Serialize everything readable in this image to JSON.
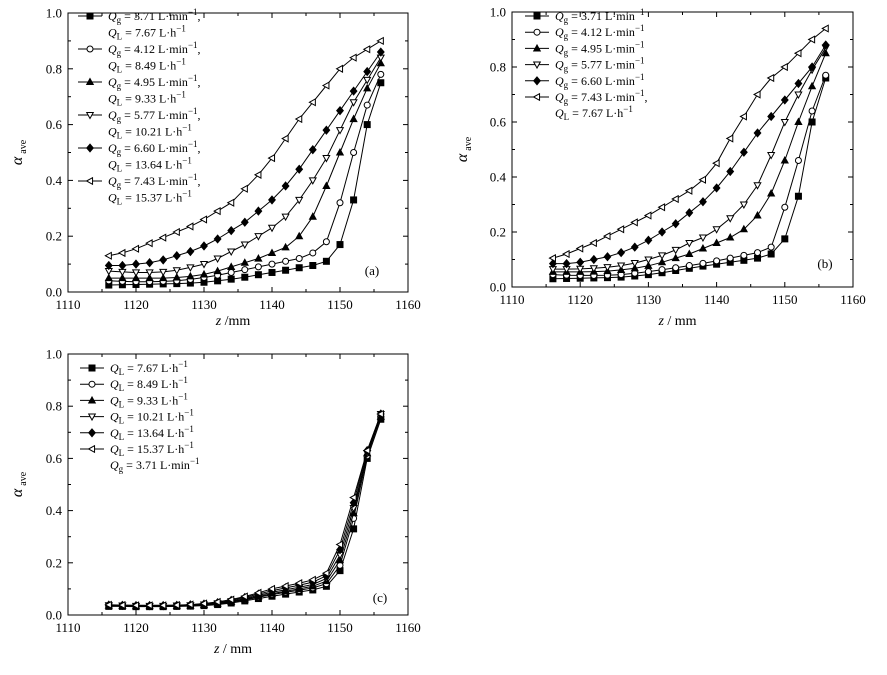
{
  "chart_data": [
    {
      "id": "a",
      "type": "line",
      "panel_label": "(a)",
      "xlabel_main": "z",
      "xlabel_unit": " /mm",
      "ylabel_main": "α",
      "ylabel_sub": "ave",
      "xlim": [
        1110,
        1160
      ],
      "ylim": [
        0,
        1.0
      ],
      "xticks": [
        "1110",
        "1120",
        "1130",
        "1140",
        "1150",
        "1160"
      ],
      "yticks": [
        "0.0",
        "0.2",
        "0.4",
        "0.6",
        "0.8",
        "1.0"
      ],
      "x": [
        1116,
        1118,
        1120,
        1122,
        1124,
        1126,
        1128,
        1130,
        1132,
        1134,
        1136,
        1138,
        1140,
        1142,
        1144,
        1146,
        1148,
        1150,
        1152,
        1154,
        1156
      ],
      "series": [
        {
          "name": "Qg = 3.71 L·min−1, QL = 7.67 L·h−1",
          "marker": "square",
          "legend": [
            [
              "Q",
              "g",
              " = 3.71 L·min",
              "−1",
              ", "
            ],
            [
              "Q",
              "L",
              " = 7.67 L·h",
              "−1",
              ""
            ]
          ],
          "values": [
            0.025,
            0.026,
            0.027,
            0.028,
            0.029,
            0.03,
            0.032,
            0.035,
            0.04,
            0.046,
            0.053,
            0.062,
            0.07,
            0.078,
            0.087,
            0.095,
            0.11,
            0.17,
            0.33,
            0.6,
            0.75
          ]
        },
        {
          "name": "Qg = 4.12 L·min−1, QL = 8.49 L·h−1",
          "marker": "circle",
          "legend": [
            [
              "Q",
              "g",
              " = 4.12 L·min",
              "−1",
              ", "
            ],
            [
              "Q",
              "L",
              " = 8.49 L·h",
              "−1",
              ""
            ]
          ],
          "values": [
            0.04,
            0.038,
            0.037,
            0.037,
            0.038,
            0.04,
            0.045,
            0.052,
            0.06,
            0.07,
            0.08,
            0.09,
            0.1,
            0.11,
            0.12,
            0.14,
            0.18,
            0.32,
            0.5,
            0.67,
            0.78
          ]
        },
        {
          "name": "Qg = 4.95 L·min−1, QL = 9.33 L·h−1",
          "marker": "triangle-up",
          "legend": [
            [
              "Q",
              "g",
              " = 4.95 L·min",
              "−1",
              ", "
            ],
            [
              "Q",
              "L",
              " = 9.33 L·h",
              "−1",
              ""
            ]
          ],
          "values": [
            0.05,
            0.05,
            0.05,
            0.05,
            0.05,
            0.052,
            0.056,
            0.063,
            0.075,
            0.09,
            0.105,
            0.12,
            0.14,
            0.16,
            0.2,
            0.27,
            0.38,
            0.5,
            0.62,
            0.73,
            0.82
          ]
        },
        {
          "name": "Qg = 5.77 L·min−1, QL = 10.21 L·h−1",
          "marker": "triangle-down",
          "legend": [
            [
              "Q",
              "g",
              " = 5.77 L·min",
              "−1",
              ", "
            ],
            [
              "Q",
              "L",
              " = 10.21 L·h",
              "−1",
              ""
            ]
          ],
          "values": [
            0.075,
            0.072,
            0.07,
            0.07,
            0.072,
            0.078,
            0.088,
            0.1,
            0.12,
            0.145,
            0.17,
            0.2,
            0.23,
            0.27,
            0.33,
            0.4,
            0.48,
            0.58,
            0.68,
            0.76,
            0.84
          ]
        },
        {
          "name": "Qg = 6.60 L·min−1, QL = 13.64 L·h−1",
          "marker": "diamond",
          "legend": [
            [
              "Q",
              "g",
              " = 6.60 L·min",
              "−1",
              ", "
            ],
            [
              "Q",
              "L",
              " = 13.64 L·h",
              "−1",
              ""
            ]
          ],
          "values": [
            0.095,
            0.095,
            0.1,
            0.105,
            0.115,
            0.13,
            0.145,
            0.165,
            0.19,
            0.22,
            0.25,
            0.29,
            0.33,
            0.38,
            0.44,
            0.51,
            0.58,
            0.65,
            0.72,
            0.79,
            0.86
          ]
        },
        {
          "name": "Qg = 7.43 L·min−1, QL = 15.37 L·h−1",
          "marker": "triangle-left",
          "legend": [
            [
              "Q",
              "g",
              " = 7.43 L·min",
              "−1",
              ","
            ],
            [
              "Q",
              "L",
              " = 15.37 L·h",
              "−1",
              ""
            ]
          ],
          "values": [
            0.13,
            0.14,
            0.155,
            0.175,
            0.195,
            0.215,
            0.235,
            0.26,
            0.29,
            0.32,
            0.37,
            0.42,
            0.48,
            0.55,
            0.62,
            0.68,
            0.74,
            0.8,
            0.84,
            0.87,
            0.9
          ]
        }
      ]
    },
    {
      "id": "b",
      "type": "line",
      "panel_label": "(b)",
      "xlabel_main": "z",
      "xlabel_unit": " / mm",
      "ylabel_main": "α",
      "ylabel_sub": "ave",
      "xlim": [
        1110,
        1160
      ],
      "ylim": [
        0,
        1.0
      ],
      "xticks": [
        "1110",
        "1120",
        "1130",
        "1140",
        "1150",
        "1160"
      ],
      "yticks": [
        "0.0",
        "0.2",
        "0.4",
        "0.6",
        "0.8",
        "1.0"
      ],
      "x": [
        1116,
        1118,
        1120,
        1122,
        1124,
        1126,
        1128,
        1130,
        1132,
        1134,
        1136,
        1138,
        1140,
        1142,
        1144,
        1146,
        1148,
        1150,
        1152,
        1154,
        1156
      ],
      "series": [
        {
          "name": "Qg = 3.71 L·min−1",
          "marker": "square",
          "legend": [
            [
              "Q",
              "g",
              " = 3.71 L·min",
              "−1",
              ""
            ]
          ],
          "values": [
            0.03,
            0.031,
            0.032,
            0.033,
            0.034,
            0.036,
            0.04,
            0.045,
            0.052,
            0.06,
            0.068,
            0.076,
            0.083,
            0.09,
            0.097,
            0.105,
            0.12,
            0.175,
            0.33,
            0.6,
            0.76
          ]
        },
        {
          "name": "Qg = 4.12 L·min−1",
          "marker": "circle",
          "legend": [
            [
              "Q",
              "g",
              " = 4.12 L·min",
              "−1",
              ""
            ]
          ],
          "values": [
            0.045,
            0.043,
            0.042,
            0.042,
            0.043,
            0.045,
            0.05,
            0.056,
            0.063,
            0.07,
            0.078,
            0.086,
            0.095,
            0.105,
            0.115,
            0.125,
            0.145,
            0.29,
            0.46,
            0.64,
            0.77
          ]
        },
        {
          "name": "Qg = 4.95 L·min−1",
          "marker": "triangle-up",
          "legend": [
            [
              "Q",
              "g",
              " = 4.95 L·min",
              "−1",
              ""
            ]
          ],
          "values": [
            0.055,
            0.055,
            0.055,
            0.056,
            0.058,
            0.062,
            0.068,
            0.077,
            0.09,
            0.105,
            0.12,
            0.14,
            0.16,
            0.18,
            0.21,
            0.26,
            0.34,
            0.46,
            0.6,
            0.73,
            0.85
          ]
        },
        {
          "name": "Qg = 5.77 L·min−1",
          "marker": "triangle-down",
          "legend": [
            [
              "Q",
              "g",
              " = 5.77 L·min",
              "−1",
              ""
            ]
          ],
          "values": [
            0.065,
            0.065,
            0.066,
            0.068,
            0.072,
            0.078,
            0.087,
            0.1,
            0.115,
            0.135,
            0.16,
            0.18,
            0.21,
            0.25,
            0.3,
            0.37,
            0.48,
            0.6,
            0.7,
            0.79,
            0.87
          ]
        },
        {
          "name": "Qg = 6.60 L·min−1",
          "marker": "diamond",
          "legend": [
            [
              "Q",
              "g",
              " = 6.60 L·min",
              "−1",
              ""
            ]
          ],
          "values": [
            0.085,
            0.085,
            0.09,
            0.1,
            0.11,
            0.125,
            0.145,
            0.17,
            0.2,
            0.23,
            0.27,
            0.31,
            0.36,
            0.42,
            0.49,
            0.56,
            0.62,
            0.68,
            0.74,
            0.8,
            0.88
          ]
        },
        {
          "name": "Qg = 7.43 L·min−1, QL = 7.67 L·h−1",
          "marker": "triangle-left",
          "legend": [
            [
              "Q",
              "g",
              " = 7.43 L·min",
              "−1",
              ","
            ],
            [
              "Q",
              "L",
              " = 7.67 L·h",
              "−1",
              ""
            ]
          ],
          "values": [
            0.105,
            0.12,
            0.14,
            0.16,
            0.185,
            0.21,
            0.235,
            0.26,
            0.29,
            0.32,
            0.35,
            0.39,
            0.45,
            0.54,
            0.62,
            0.7,
            0.76,
            0.8,
            0.85,
            0.9,
            0.94
          ]
        }
      ]
    },
    {
      "id": "c",
      "type": "line",
      "panel_label": "(c)",
      "xlabel_main": "z",
      "xlabel_unit": " / mm",
      "ylabel_main": "α",
      "ylabel_sub": "ave",
      "xlim": [
        1110,
        1160
      ],
      "ylim": [
        0,
        1.0
      ],
      "xticks": [
        "1110",
        "1120",
        "1130",
        "1140",
        "1150",
        "1160"
      ],
      "yticks": [
        "0.0",
        "0.2",
        "0.4",
        "0.6",
        "0.8",
        "1.0"
      ],
      "x": [
        1116,
        1118,
        1120,
        1122,
        1124,
        1126,
        1128,
        1130,
        1132,
        1134,
        1136,
        1138,
        1140,
        1142,
        1144,
        1146,
        1148,
        1150,
        1152,
        1154,
        1156
      ],
      "legend_note": [
        [
          "Q",
          "g",
          " = 3.71 L·min",
          "−1",
          ""
        ]
      ],
      "series": [
        {
          "name": "QL = 7.67 L·h−1",
          "marker": "square",
          "legend": [
            [
              "Q",
              "L",
              " = 7.67 L·h",
              "−1",
              ""
            ]
          ],
          "values": [
            0.033,
            0.033,
            0.032,
            0.032,
            0.032,
            0.033,
            0.034,
            0.036,
            0.04,
            0.046,
            0.054,
            0.063,
            0.072,
            0.08,
            0.088,
            0.096,
            0.11,
            0.17,
            0.33,
            0.6,
            0.75
          ]
        },
        {
          "name": "QL = 8.49 L·h−1",
          "marker": "circle",
          "legend": [
            [
              "Q",
              "L",
              " = 8.49 L·h",
              "−1",
              ""
            ]
          ],
          "values": [
            0.035,
            0.034,
            0.033,
            0.033,
            0.033,
            0.034,
            0.035,
            0.038,
            0.042,
            0.049,
            0.058,
            0.068,
            0.078,
            0.087,
            0.095,
            0.104,
            0.12,
            0.19,
            0.37,
            0.61,
            0.76
          ]
        },
        {
          "name": "QL = 9.33 L·h−1",
          "marker": "triangle-up",
          "legend": [
            [
              "Q",
              "L",
              " = 9.33 L·h",
              "−1",
              ""
            ]
          ],
          "values": [
            0.036,
            0.035,
            0.034,
            0.034,
            0.034,
            0.035,
            0.036,
            0.039,
            0.044,
            0.051,
            0.06,
            0.071,
            0.082,
            0.091,
            0.1,
            0.11,
            0.13,
            0.21,
            0.39,
            0.62,
            0.76
          ]
        },
        {
          "name": "QL = 10.21 L·h−1",
          "marker": "triangle-down",
          "legend": [
            [
              "Q",
              "L",
              " = 10.21 L·h",
              "−1",
              ""
            ]
          ],
          "values": [
            0.037,
            0.036,
            0.035,
            0.035,
            0.035,
            0.036,
            0.037,
            0.04,
            0.045,
            0.053,
            0.063,
            0.075,
            0.087,
            0.097,
            0.106,
            0.117,
            0.14,
            0.23,
            0.41,
            0.62,
            0.77
          ]
        },
        {
          "name": "QL = 13.64 L·h−1",
          "marker": "diamond",
          "legend": [
            [
              "Q",
              "L",
              " = 13.64 L·h",
              "−1",
              ""
            ]
          ],
          "values": [
            0.038,
            0.037,
            0.036,
            0.036,
            0.036,
            0.037,
            0.039,
            0.042,
            0.047,
            0.056,
            0.067,
            0.08,
            0.093,
            0.104,
            0.114,
            0.126,
            0.15,
            0.25,
            0.43,
            0.63,
            0.77
          ]
        },
        {
          "name": "QL = 15.37 L·h−1",
          "marker": "triangle-left",
          "legend": [
            [
              "Q",
              "L",
              " = 15.37 L·h",
              "−1",
              ""
            ]
          ],
          "values": [
            0.039,
            0.038,
            0.037,
            0.037,
            0.037,
            0.038,
            0.04,
            0.044,
            0.05,
            0.059,
            0.071,
            0.085,
            0.1,
            0.111,
            0.122,
            0.135,
            0.16,
            0.27,
            0.45,
            0.63,
            0.77
          ]
        }
      ]
    }
  ]
}
